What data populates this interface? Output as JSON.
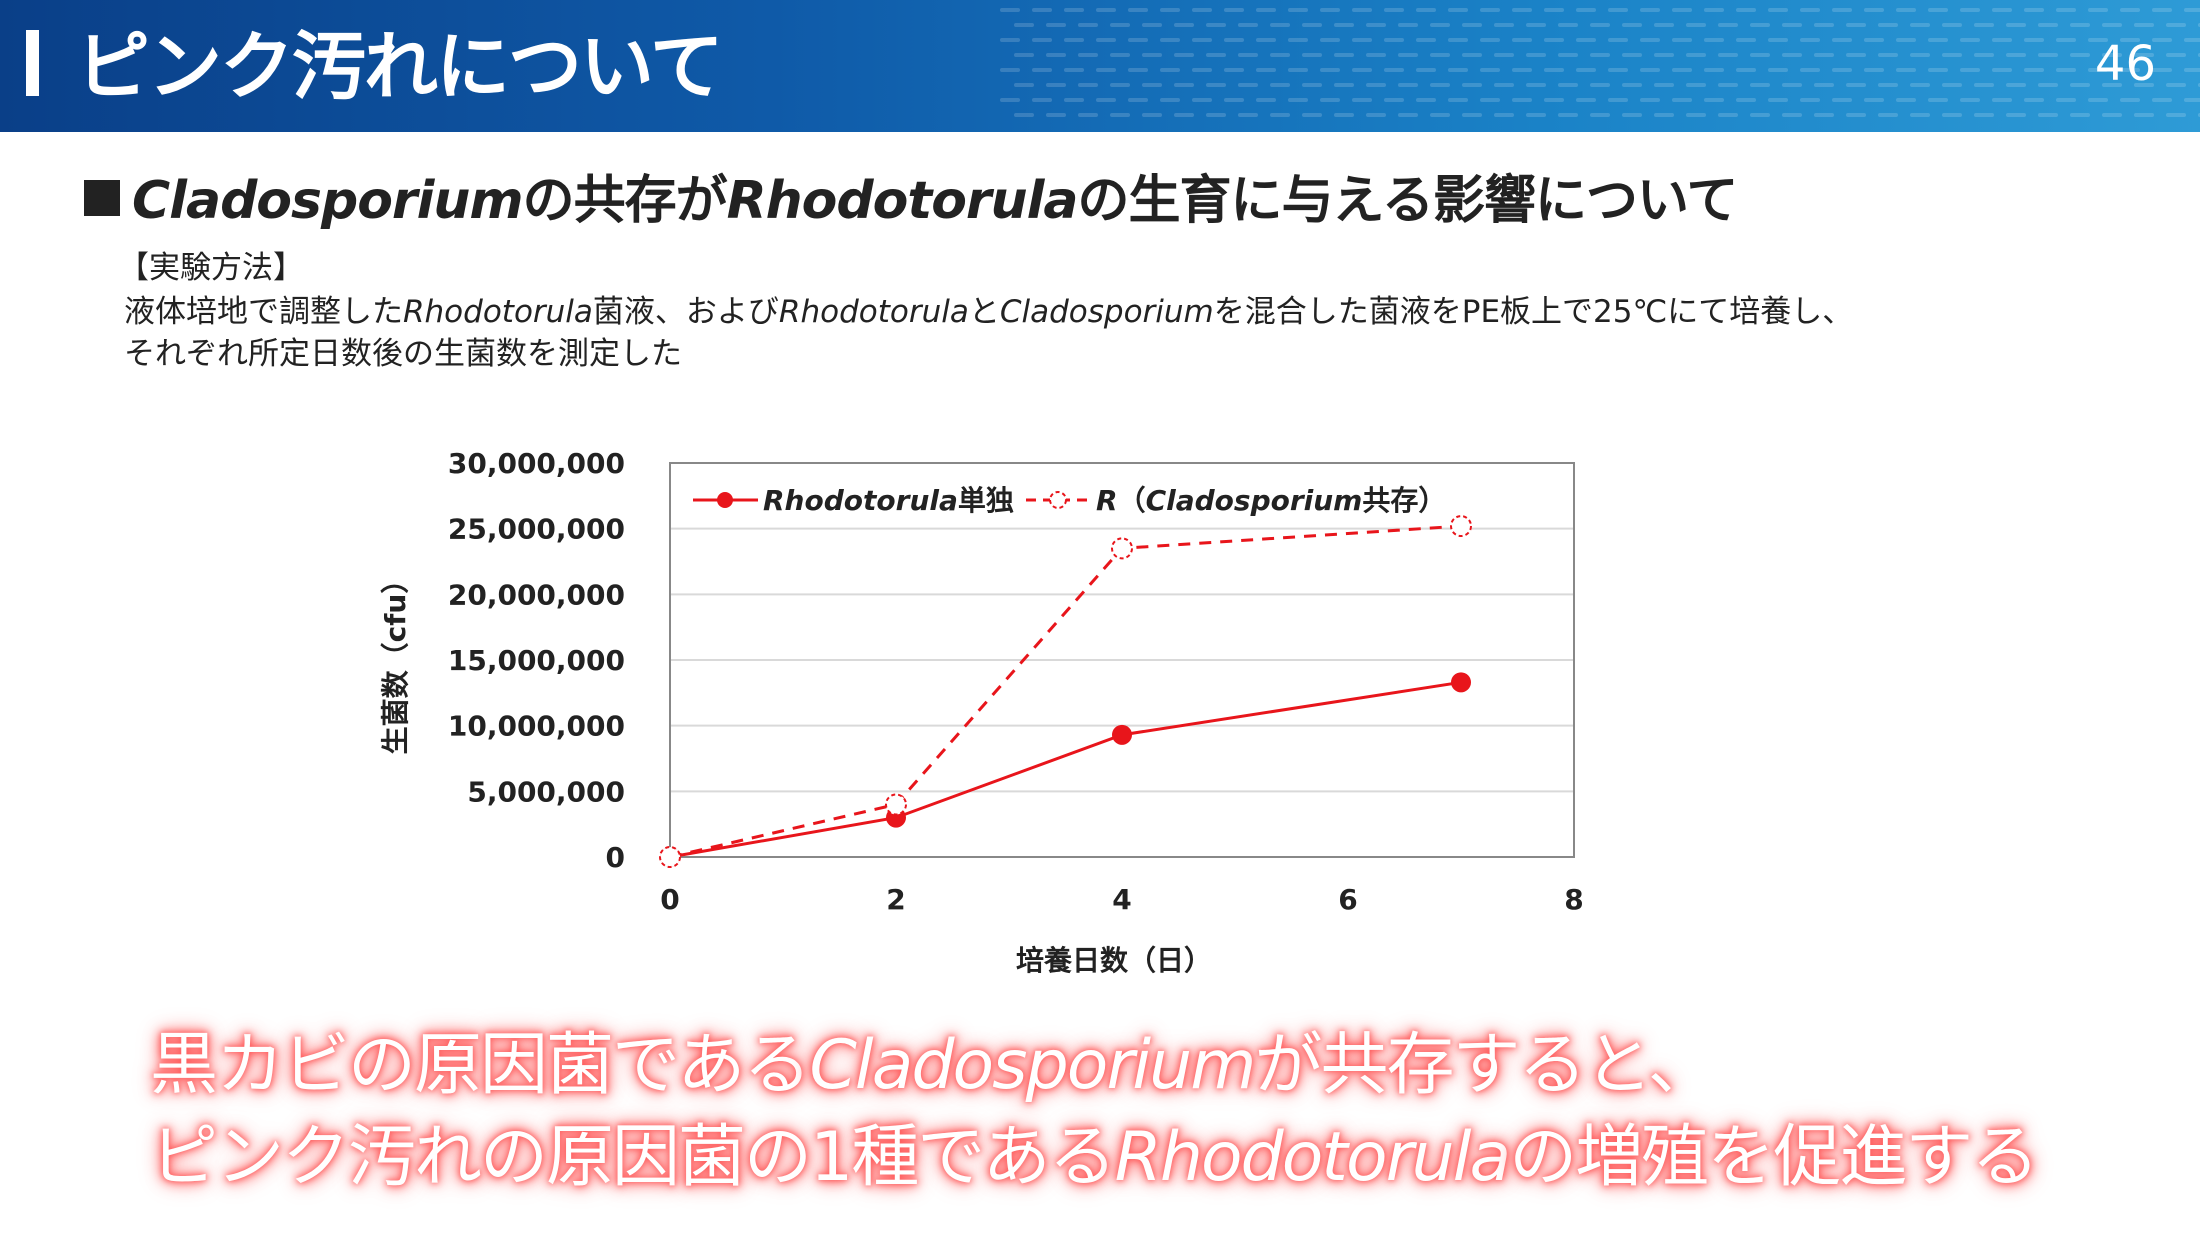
{
  "header": {
    "title": "ピンク汚れについて",
    "page_number": "46",
    "accent": "#0f5aa8"
  },
  "subtitle": {
    "part1": "Cladosporium",
    "part2": "の共存が",
    "part3": "Rhodotorula",
    "part4": "の生育に与える影響について"
  },
  "method": {
    "label": "【実験方法】",
    "line1_a": "液体培地で調整した",
    "line1_b": "Rhodotorula",
    "line1_c": "菌液、および",
    "line1_d": "Rhodotorula",
    "line1_e": "と",
    "line1_f": "Cladosporium",
    "line1_g": "を混合した菌液をPE板上で25℃にて培養し、",
    "line2": "それぞれ所定日数後の生菌数を測定した"
  },
  "chart_data": {
    "type": "line",
    "x": [
      0,
      2,
      4,
      7
    ],
    "series": [
      {
        "name_italic": "Rhodotorula",
        "name_rest": "単独",
        "values": [
          0,
          3000000,
          9300000,
          13300000
        ],
        "style": "solid",
        "color": "#e8151b"
      },
      {
        "name_italic": "R",
        "name_rest": "（",
        "name_italic2": "Cladosporium",
        "name_rest2": "共存）",
        "values": [
          0,
          4000000,
          23500000,
          25200000
        ],
        "style": "dashed",
        "color": "#e8151b"
      }
    ],
    "xlabel": "培養日数（日）",
    "ylabel": "生菌数（cfu）",
    "xlim": [
      0,
      8
    ],
    "ylim": [
      0,
      30000000
    ],
    "xticks": [
      "0",
      "2",
      "4",
      "6",
      "8"
    ],
    "yticks": [
      "0",
      "5,000,000",
      "10,000,000",
      "15,000,000",
      "20,000,000",
      "25,000,000",
      "30,000,000"
    ],
    "grid": true,
    "legend": "top-left"
  },
  "conclusion": {
    "line1_a": "黒カビの原因菌である",
    "line1_b": "Cladosporium",
    "line1_c": "が共存すると、",
    "line2_a": "ピンク汚れの原因菌の1種である",
    "line2_b": "Rhodotorula",
    "line2_c": "の増殖を促進する"
  }
}
